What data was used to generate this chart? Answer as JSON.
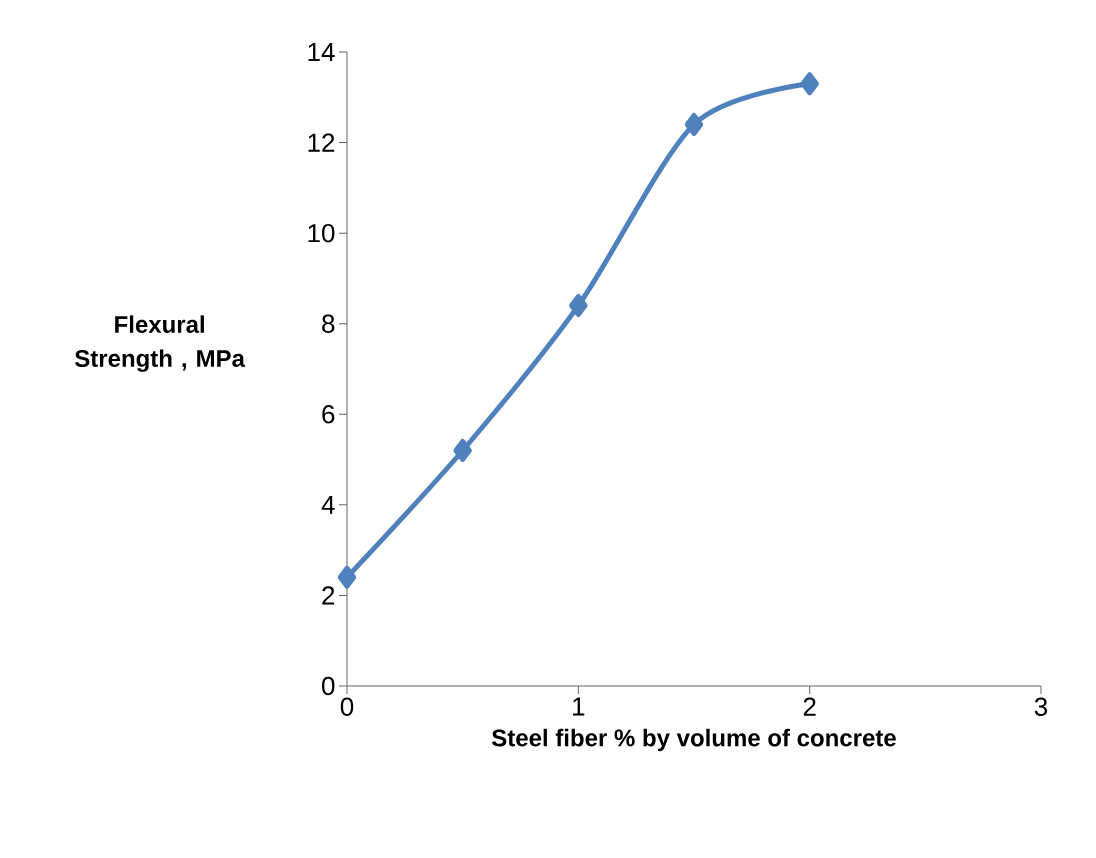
{
  "chart_data": {
    "type": "line",
    "xlabel": "Steel fiber % by volume of concrete",
    "ylabel": "Flexural Strength , MPa",
    "x": [
      0,
      0.5,
      1,
      1.5,
      2
    ],
    "series": [
      {
        "color": "#4f81bd",
        "values": [
          2.4,
          5.2,
          8.4,
          12.4,
          13.3
        ]
      }
    ],
    "xlim": [
      0,
      3
    ],
    "xticks": [
      0,
      1,
      2,
      3
    ],
    "ylim": [
      0,
      14
    ],
    "yticks": [
      0,
      2,
      4,
      6,
      8,
      10,
      12,
      14
    ],
    "grid": false,
    "marker": "diamond",
    "line_style": "solid"
  }
}
